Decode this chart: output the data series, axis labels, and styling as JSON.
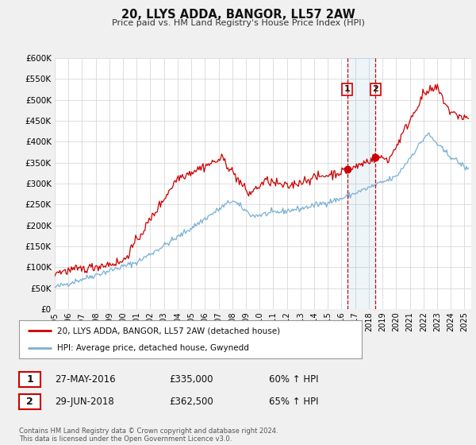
{
  "title": "20, LLYS ADDA, BANGOR, LL57 2AW",
  "subtitle": "Price paid vs. HM Land Registry's House Price Index (HPI)",
  "legend_label_red": "20, LLYS ADDA, BANGOR, LL57 2AW (detached house)",
  "legend_label_blue": "HPI: Average price, detached house, Gwynedd",
  "annotation1_date": "27-MAY-2016",
  "annotation1_price": "£335,000",
  "annotation1_pct": "60% ↑ HPI",
  "annotation1_year": 2016.41,
  "annotation1_value": 335000,
  "annotation2_date": "29-JUN-2018",
  "annotation2_price": "£362,500",
  "annotation2_pct": "65% ↑ HPI",
  "annotation2_year": 2018.49,
  "annotation2_value": 362500,
  "red_color": "#cc0000",
  "blue_color": "#7ab0d4",
  "bg_color": "#f0f0f0",
  "plot_bg_color": "#ffffff",
  "grid_color": "#d0d0d0",
  "footer_text": "Contains HM Land Registry data © Crown copyright and database right 2024.\nThis data is licensed under the Open Government Licence v3.0.",
  "ylim": [
    0,
    600000
  ],
  "yticks": [
    0,
    50000,
    100000,
    150000,
    200000,
    250000,
    300000,
    350000,
    400000,
    450000,
    500000,
    550000,
    600000
  ],
  "xlim_start": 1995.0,
  "xlim_end": 2025.5
}
